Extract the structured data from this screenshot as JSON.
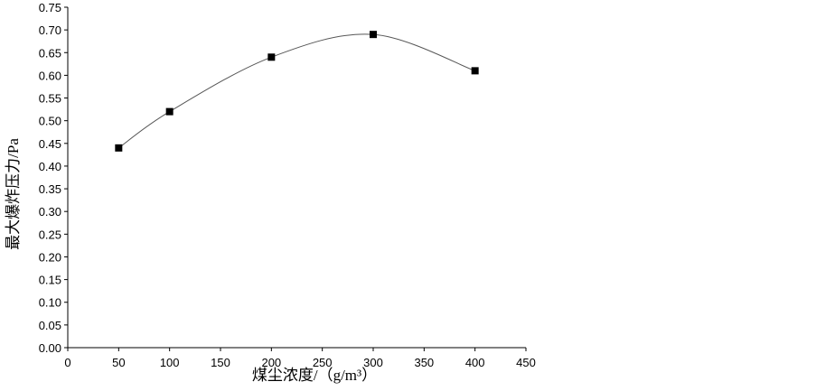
{
  "chart_data": {
    "type": "line",
    "x_label": "煤尘浓度/（g/m³）",
    "y_label": "最大爆炸压力/Pa",
    "x": [
      50,
      100,
      200,
      300,
      400
    ],
    "series": [
      {
        "name": "最大爆炸压力",
        "color": "#000000",
        "values": [
          0.44,
          0.52,
          0.64,
          0.69,
          0.61
        ]
      }
    ],
    "xlim": [
      0,
      450
    ],
    "xticks": [
      0,
      50,
      100,
      150,
      200,
      250,
      300,
      350,
      400,
      450
    ],
    "ylim": [
      0,
      0.75
    ],
    "yticks": [
      {
        "value": 0,
        "label": "0.00"
      },
      0.05,
      {
        "value": 0.1,
        "label": "0.10"
      },
      0.15,
      {
        "value": 0.2,
        "label": "0.20"
      },
      0.25,
      {
        "value": 0.3,
        "label": "0.30"
      },
      0.35,
      {
        "value": 0.4,
        "label": "0.40"
      },
      0.45,
      {
        "value": 0.5,
        "label": "0.50"
      },
      0.55,
      {
        "value": 0.6,
        "label": "0.60"
      },
      0.65,
      {
        "value": 0.7,
        "label": "0.70"
      },
      0.75
    ],
    "grid": false
  }
}
